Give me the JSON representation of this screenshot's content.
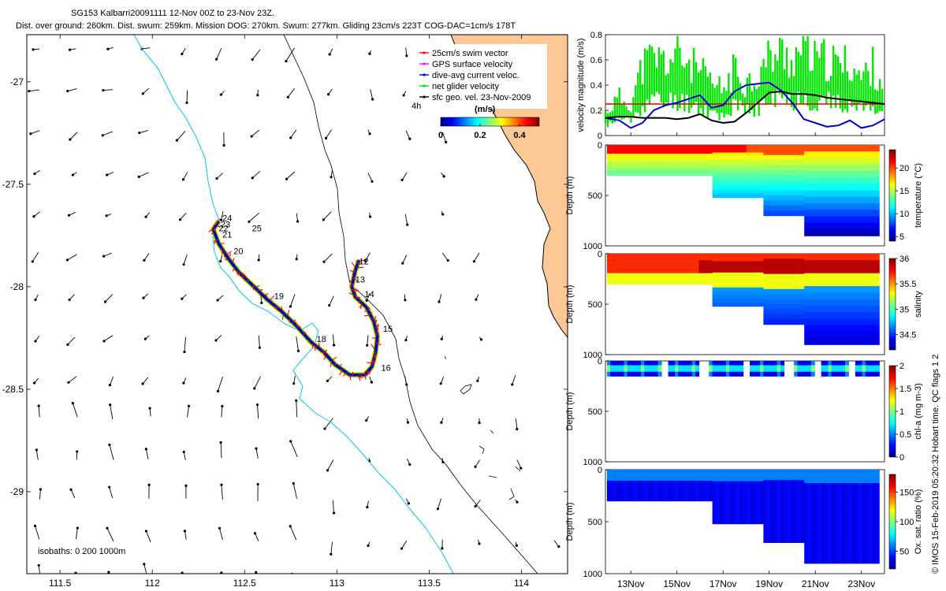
{
  "header": {
    "title_line1": "SG153 Kalbarri20091111 12-Nov 00Z to 23-Nov 23Z.",
    "title_line2": "Dist. over ground: 260km. Dist. swum: 259km. Mission DOG: 270km. Swum: 277km. Gliding 23cm/s 223T COG-DAC=1cm/s 178T"
  },
  "side_credit": "© IMOS 15-Feb-2019 05:20:32 Hobart time. QC flags 1  2",
  "colors": {
    "land": "#FCC896",
    "isobath": "#00C8E6",
    "coast": "#000000",
    "track_blue": "#0000CC",
    "swim_red": "#FF0000",
    "glider_green": "#00E600",
    "gps_magenta": "#FF00FF",
    "threshold_red": "#E60000"
  },
  "chart_data": [
    {
      "type": "map",
      "name": "trajectory-map",
      "x_ticks": [
        "111.5",
        "112",
        "112.5",
        "113",
        "113.5",
        "114"
      ],
      "y_ticks": [
        "-27",
        "-27.5",
        "-28",
        "-28.5",
        "-29"
      ],
      "xlim": [
        111.32,
        114.25
      ],
      "ylim": [
        -29.4,
        -26.77
      ],
      "legend": [
        {
          "label": "25cm/s swim vector",
          "color": "#FF0000"
        },
        {
          "label": "GPS surface velocity",
          "color": "#FF00FF"
        },
        {
          "label": "dive-avg current veloc.",
          "color": "#0000CC"
        },
        {
          "label": "net glider velocity",
          "color": "#00E600"
        },
        {
          "label": "sfc geo. vel. 23-Nov-2009",
          "color": "#000000"
        }
      ],
      "legend_extra": "4h",
      "colorbar": {
        "label": "(m/s)",
        "ticks": [
          "0",
          "0.2",
          "0.4"
        ],
        "range": [
          0,
          0.5
        ]
      },
      "isobath_label": "isobaths: 0   200  1000m",
      "day_labels": [
        {
          "text": "12",
          "lon": 113.12,
          "lat": -27.89
        },
        {
          "text": "13",
          "lon": 113.1,
          "lat": -27.98
        },
        {
          "text": "14",
          "lon": 113.15,
          "lat": -28.05
        },
        {
          "text": "15",
          "lon": 113.25,
          "lat": -28.22
        },
        {
          "text": "16",
          "lon": 113.24,
          "lat": -28.41
        },
        {
          "text": "18",
          "lon": 112.89,
          "lat": -28.27
        },
        {
          "text": "19",
          "lon": 112.66,
          "lat": -28.06
        },
        {
          "text": "20",
          "lon": 112.44,
          "lat": -27.84
        },
        {
          "text": "21",
          "lon": 112.38,
          "lat": -27.76
        },
        {
          "text": "22",
          "lon": 112.36,
          "lat": -27.73
        },
        {
          "text": "23",
          "lon": 112.37,
          "lat": -27.71
        },
        {
          "text": "24",
          "lon": 112.38,
          "lat": -27.68
        },
        {
          "text": "25",
          "lon": 112.54,
          "lat": -27.73
        }
      ],
      "track": [
        [
          113.12,
          -27.87
        ],
        [
          113.1,
          -27.92
        ],
        [
          113.08,
          -28.0
        ],
        [
          113.1,
          -28.05
        ],
        [
          113.16,
          -28.1
        ],
        [
          113.2,
          -28.17
        ],
        [
          113.22,
          -28.24
        ],
        [
          113.21,
          -28.32
        ],
        [
          113.19,
          -28.39
        ],
        [
          113.15,
          -28.43
        ],
        [
          113.07,
          -28.43
        ],
        [
          112.99,
          -28.38
        ],
        [
          112.93,
          -28.32
        ],
        [
          112.86,
          -28.27
        ],
        [
          112.78,
          -28.19
        ],
        [
          112.7,
          -28.12
        ],
        [
          112.62,
          -28.06
        ],
        [
          112.54,
          -27.99
        ],
        [
          112.47,
          -27.93
        ],
        [
          112.41,
          -27.86
        ],
        [
          112.36,
          -27.79
        ],
        [
          112.33,
          -27.72
        ],
        [
          112.36,
          -27.68
        ]
      ]
    },
    {
      "type": "line",
      "name": "velocity-magnitude",
      "ylabel": "velocity magnitude (m/s)",
      "ylim": [
        0,
        0.8
      ],
      "y_ticks": [
        "0",
        "0.2",
        "0.4",
        "0.6",
        "0.8"
      ],
      "x_ticks": [
        "13Nov",
        "15Nov",
        "17Nov",
        "19Nov",
        "21Nov",
        "23Nov"
      ],
      "xlim": [
        11.9,
        24.0
      ],
      "threshold": 0.25,
      "series": [
        {
          "color": "#000000",
          "x": [
            11.9,
            12.5,
            13.0,
            13.5,
            14.0,
            14.5,
            15.0,
            15.5,
            16.0,
            16.5,
            17.0,
            17.5,
            18.0,
            18.5,
            19.0,
            19.5,
            20.0,
            20.5,
            21.0,
            21.5,
            22.0,
            22.5,
            23.0,
            23.5,
            24.0
          ],
          "values": [
            0.14,
            0.15,
            0.15,
            0.14,
            0.14,
            0.14,
            0.13,
            0.14,
            0.17,
            0.12,
            0.1,
            0.11,
            0.18,
            0.26,
            0.34,
            0.35,
            0.33,
            0.33,
            0.32,
            0.3,
            0.29,
            0.28,
            0.27,
            0.26,
            0.25
          ]
        },
        {
          "color": "#0000CC",
          "x": [
            11.9,
            12.5,
            13.0,
            13.5,
            14.0,
            14.5,
            15.0,
            15.5,
            16.0,
            16.5,
            17.0,
            17.5,
            18.0,
            18.5,
            19.0,
            19.5,
            20.0,
            20.5,
            21.0,
            21.5,
            22.0,
            22.5,
            23.0,
            23.5,
            24.0
          ],
          "values": [
            0.14,
            0.12,
            0.06,
            0.1,
            0.2,
            0.24,
            0.26,
            0.29,
            0.32,
            0.22,
            0.24,
            0.35,
            0.4,
            0.41,
            0.42,
            0.36,
            0.26,
            0.13,
            0.1,
            0.07,
            0.08,
            0.12,
            0.06,
            0.08,
            0.13
          ]
        },
        {
          "color": "#00E600",
          "x": [
            11.9,
            12.5,
            13.0,
            13.5,
            14.0,
            14.5,
            15.0,
            15.5,
            16.0,
            16.5,
            17.0,
            17.5,
            18.0,
            18.5,
            19.0,
            19.5,
            20.0,
            20.5,
            21.0,
            21.5,
            22.0,
            22.5,
            23.0,
            23.5,
            24.0
          ],
          "values": [
            0.18,
            0.3,
            0.25,
            0.55,
            0.62,
            0.58,
            0.63,
            0.58,
            0.5,
            0.4,
            0.36,
            0.52,
            0.42,
            0.47,
            0.62,
            0.65,
            0.6,
            0.7,
            0.58,
            0.6,
            0.55,
            0.58,
            0.45,
            0.55,
            0.4
          ]
        }
      ]
    },
    {
      "type": "heatmap",
      "name": "temperature-section",
      "ylabel": "Depth (m)",
      "cbar_label": "temperature (°C)",
      "cbar_ticks": [
        "5",
        "10",
        "15",
        "20"
      ],
      "vmin": 4,
      "vmax": 24,
      "ylim": [
        0,
        1000
      ],
      "y_ticks": [
        "0",
        "500",
        "1000"
      ],
      "xlim": [
        11.9,
        24.0
      ],
      "mode": "temp"
    },
    {
      "type": "heatmap",
      "name": "salinity-section",
      "ylabel": "Depth (m)",
      "cbar_label": "salinity",
      "cbar_ticks": [
        "34.5",
        "35",
        "35.5",
        "36"
      ],
      "vmin": 34.2,
      "vmax": 36,
      "ylim": [
        0,
        1000
      ],
      "y_ticks": [
        "0",
        "500",
        "1000"
      ],
      "xlim": [
        11.9,
        24.0
      ],
      "mode": "sal"
    },
    {
      "type": "heatmap",
      "name": "chlorophyll-section",
      "ylabel": "Depth (m)",
      "cbar_label": "chl-a (mg m-3)",
      "cbar_ticks": [
        "0",
        "0.5",
        "1",
        "1.5",
        "2"
      ],
      "vmin": 0,
      "vmax": 2,
      "ylim": [
        0,
        1000
      ],
      "y_ticks": [
        "0",
        "500",
        "1000"
      ],
      "xlim": [
        11.9,
        24.0
      ],
      "mode": "chl"
    },
    {
      "type": "heatmap",
      "name": "oxygen-section",
      "ylabel": "Depth (m)",
      "cbar_label": "Ox. sat. ratio (%)",
      "cbar_ticks": [
        "50",
        "100",
        "150"
      ],
      "vmin": 20,
      "vmax": 180,
      "ylim": [
        0,
        1000
      ],
      "y_ticks": [
        "0",
        "500",
        "1000"
      ],
      "x_ticks": [
        "13Nov",
        "15Nov",
        "17Nov",
        "19Nov",
        "21Nov",
        "23Nov"
      ],
      "xlim": [
        11.9,
        24.0
      ],
      "mode": "oxy"
    }
  ]
}
